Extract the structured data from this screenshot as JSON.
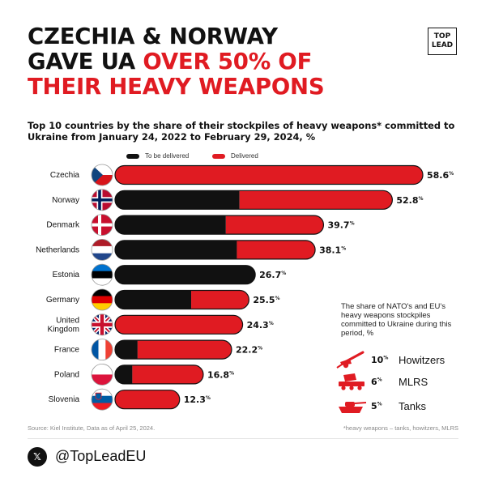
{
  "header": {
    "line1": "CZECHIA & NORWAY",
    "line2_black": "GAVE UA ",
    "line2_red": "OVER 50% OF",
    "line3": "THEIR HEAVY WEAPONS"
  },
  "logo": {
    "top": "TOP",
    "bottom": "LEAD"
  },
  "subtitle": "Top 10 countries by the share of their stockpiles of heavy weapons* committed to Ukraine from January 24, 2022 to February 29, 2024, %",
  "legend": {
    "to_be_delivered": "To be delivered",
    "delivered": "Delivered"
  },
  "colors": {
    "delivered": "#e01b22",
    "to_be_delivered": "#111111",
    "accent": "#e01b22"
  },
  "chart_data": {
    "type": "bar",
    "orientation": "horizontal",
    "stacked": true,
    "unit": "%",
    "categories": [
      "Czechia",
      "Norway",
      "Denmark",
      "Netherlands",
      "Estonia",
      "Germany",
      "United Kingdom",
      "France",
      "Poland",
      "Slovenia"
    ],
    "labels": [
      [
        "Czechia"
      ],
      [
        "Norway"
      ],
      [
        "Denmark"
      ],
      [
        "Netherlands"
      ],
      [
        "Estonia"
      ],
      [
        "Germany"
      ],
      [
        "United",
        "Kingdom"
      ],
      [
        "France"
      ],
      [
        "Poland"
      ],
      [
        "Slovenia"
      ]
    ],
    "flags": [
      "czechia-flag",
      "norway-flag",
      "denmark-flag",
      "netherlands-flag",
      "estonia-flag",
      "germany-flag",
      "united-kingdom-flag",
      "france-flag",
      "poland-flag",
      "slovenia-flag"
    ],
    "series": [
      {
        "name": "To be delivered",
        "values": [
          0,
          23.7,
          21.1,
          23.2,
          26.7,
          14.5,
          0,
          4.3,
          3.3,
          0
        ]
      },
      {
        "name": "Delivered",
        "values": [
          58.6,
          29.1,
          18.6,
          14.9,
          0,
          11.0,
          24.3,
          17.9,
          13.5,
          12.3
        ]
      }
    ],
    "totals": [
      58.6,
      52.8,
      39.7,
      38.1,
      26.7,
      25.5,
      24.3,
      22.2,
      16.8,
      12.3
    ],
    "total_labels": [
      "58.6",
      "52.8",
      "39.7",
      "38.1",
      "26.7",
      "25.5",
      "24.3",
      "22.2",
      "16.8",
      "12.3"
    ],
    "total_suffix": "%",
    "xlim": [
      0,
      58.6
    ]
  },
  "nato_panel": {
    "note": "The share of NATO's and EU's heavy weapons stockpiles committed to Ukraine during this period, %",
    "items": [
      {
        "value": "10",
        "suffix": "%",
        "label": "Howitzers",
        "icon": "howitzer-icon"
      },
      {
        "value": "6",
        "suffix": "%",
        "label": "MLRS",
        "icon": "mlrs-icon"
      },
      {
        "value": "5",
        "suffix": "%",
        "label": "Tanks",
        "icon": "tank-icon"
      }
    ]
  },
  "source": "Source: Kiel Institute, Data as of April 25, 2024.",
  "footnote": "*heavy weapons – tanks, howitzers, MLRS",
  "social": {
    "icon": "x-logo-icon",
    "glyph": "𝕏",
    "handle": "@TopLeadEU"
  }
}
